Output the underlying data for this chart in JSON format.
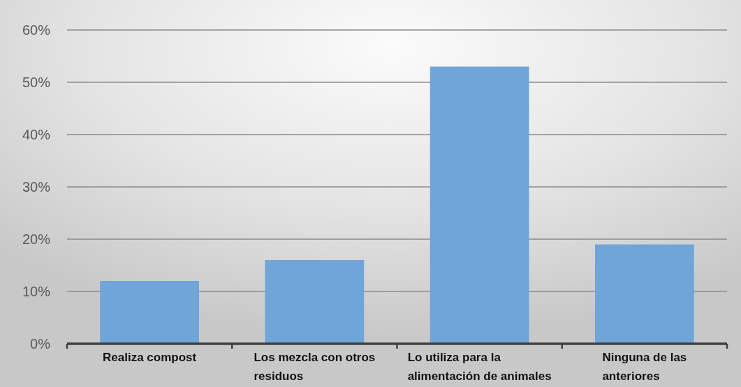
{
  "chart_data": {
    "type": "bar",
    "categories": [
      "Realiza compost",
      "Los mezcla con otros residuos",
      "Lo utiliza para la alimentación de animales",
      "Ninguna de las anteriores"
    ],
    "values": [
      12,
      16,
      53,
      19
    ],
    "color": "#6fa5d8",
    "ylim": [
      0,
      60
    ],
    "yticks": [
      {
        "value": 0,
        "label": "0%"
      },
      {
        "value": 10,
        "label": "10%"
      },
      {
        "value": 20,
        "label": "20%"
      },
      {
        "value": 30,
        "label": "30%"
      },
      {
        "value": 40,
        "label": "40%"
      },
      {
        "value": 50,
        "label": "50%"
      },
      {
        "value": 60,
        "label": "60%"
      }
    ],
    "grid": "y"
  }
}
